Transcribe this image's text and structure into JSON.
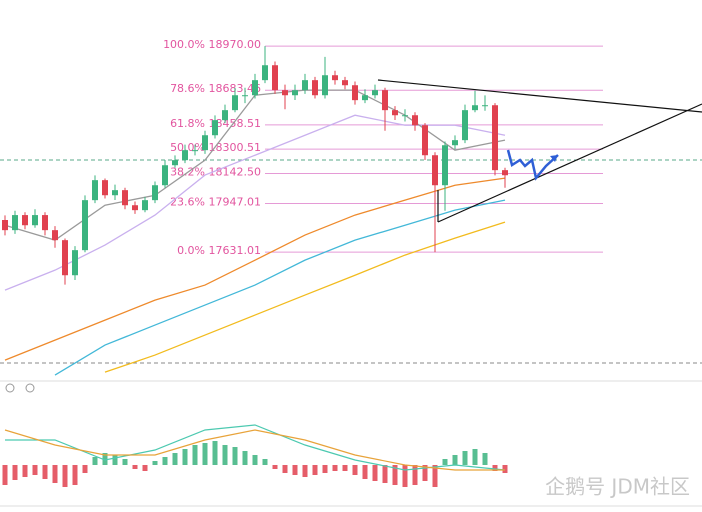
{
  "chart_data": {
    "type": "candlestick",
    "ylim": [
      16800,
      19270
    ],
    "up_color": "#3bb37f",
    "down_color": "#e0414f",
    "candles": [
      [
        17840,
        17870,
        17740,
        17774
      ],
      [
        17774,
        17900,
        17750,
        17872
      ],
      [
        17872,
        17890,
        17780,
        17806
      ],
      [
        17806,
        17910,
        17790,
        17872
      ],
      [
        17872,
        17890,
        17740,
        17774
      ],
      [
        17774,
        17800,
        17660,
        17709
      ],
      [
        17709,
        17720,
        17420,
        17481
      ],
      [
        17481,
        17670,
        17450,
        17644
      ],
      [
        17644,
        18000,
        17630,
        17969
      ],
      [
        17969,
        18130,
        17950,
        18099
      ],
      [
        18099,
        18110,
        17980,
        18001
      ],
      [
        18001,
        18070,
        17970,
        18034
      ],
      [
        18034,
        18050,
        17910,
        17936
      ],
      [
        17936,
        17960,
        17880,
        17904
      ],
      [
        17904,
        17990,
        17890,
        17969
      ],
      [
        17969,
        18090,
        17950,
        18066
      ],
      [
        18066,
        18230,
        18050,
        18196
      ],
      [
        18196,
        18260,
        18180,
        18229
      ],
      [
        18229,
        18330,
        18210,
        18294
      ],
      [
        18294,
        18330,
        18260,
        18294
      ],
      [
        18294,
        18420,
        18270,
        18391
      ],
      [
        18391,
        18520,
        18370,
        18489
      ],
      [
        18489,
        18590,
        18470,
        18554
      ],
      [
        18554,
        18700,
        18540,
        18651
      ],
      [
        18651,
        18700,
        18600,
        18651
      ],
      [
        18651,
        18790,
        18630,
        18749
      ],
      [
        18749,
        18970,
        18730,
        18846
      ],
      [
        18846,
        18870,
        18660,
        18684
      ],
      [
        18684,
        18720,
        18560,
        18651
      ],
      [
        18651,
        18720,
        18620,
        18684
      ],
      [
        18684,
        18790,
        18660,
        18749
      ],
      [
        18749,
        18770,
        18630,
        18651
      ],
      [
        18651,
        18900,
        18630,
        18781
      ],
      [
        18781,
        18810,
        18720,
        18749
      ],
      [
        18749,
        18770,
        18690,
        18716
      ],
      [
        18716,
        18740,
        18590,
        18619
      ],
      [
        18619,
        18690,
        18600,
        18651
      ],
      [
        18651,
        18720,
        18630,
        18684
      ],
      [
        18684,
        18700,
        18420,
        18554
      ],
      [
        18554,
        18580,
        18490,
        18521
      ],
      [
        18521,
        18560,
        18480,
        18521
      ],
      [
        18521,
        18540,
        18420,
        18456
      ],
      [
        18456,
        18470,
        18230,
        18261
      ],
      [
        18261,
        18280,
        17631,
        18066
      ],
      [
        18066,
        18350,
        17900,
        18326
      ],
      [
        18326,
        18390,
        18300,
        18359
      ],
      [
        18359,
        18590,
        18340,
        18554
      ],
      [
        18554,
        18680,
        18540,
        18586
      ],
      [
        18586,
        18650,
        18550,
        18586
      ],
      [
        18586,
        18600,
        18130,
        18164
      ],
      [
        18164,
        18180,
        18050,
        18131
      ]
    ],
    "moving_averages": [
      {
        "color": "#c9b0ee",
        "values": [
          17384,
          17514,
          17677,
          17872,
          18132,
          18261,
          18391,
          18521,
          18456,
          18456,
          18391
        ]
      },
      {
        "color": "#9a9a9a",
        "values": [
          17806,
          17709,
          17936,
          18001,
          18229,
          18651,
          18684,
          18684,
          18521,
          18294,
          18359
        ]
      },
      {
        "color": "#ee8a2c",
        "values": [
          16929,
          17059,
          17189,
          17319,
          17417,
          17579,
          17742,
          17872,
          17969,
          18066,
          18112
        ]
      },
      {
        "color": "#43b8d8",
        "values": [
          null,
          16832,
          17027,
          17157,
          17287,
          17417,
          17579,
          17709,
          17806,
          17904,
          17969
        ]
      },
      {
        "color": "#f2bb1e",
        "values": [
          null,
          null,
          16851,
          16962,
          17092,
          17222,
          17352,
          17481,
          17612,
          17722,
          17826
        ]
      }
    ],
    "fibonacci": {
      "line_color": "#e59ad6",
      "label_color": "#e2559f",
      "levels": [
        {
          "value": 18970,
          "label": "100.0% 18970.00"
        },
        {
          "value": 18683.46,
          "label": "78.6% 18683.46"
        },
        {
          "value": 18458.51,
          "label": "61.8% 18458.51"
        },
        {
          "value": 18300.51,
          "label": "50.0% 18300.51"
        },
        {
          "value": 18142.5,
          "label": "38.2% 18142.50"
        },
        {
          "value": 17947.01,
          "label": "23.6% 17947.01"
        },
        {
          "value": 17631.01,
          "label": "0.0% 17631.01"
        }
      ]
    },
    "macd": {
      "ylim": [
        -40,
        70
      ],
      "histogram": [
        -20,
        -15,
        -12,
        -10,
        -14,
        -18,
        -22,
        -20,
        -8,
        8,
        12,
        10,
        6,
        -4,
        -6,
        4,
        8,
        12,
        16,
        20,
        22,
        24,
        20,
        18,
        14,
        10,
        6,
        -4,
        -8,
        -10,
        -12,
        -10,
        -8,
        -6,
        -6,
        -10,
        -14,
        -16,
        -18,
        -20,
        -22,
        -20,
        -16,
        -22,
        6,
        10,
        14,
        16,
        12,
        -6,
        -8
      ],
      "lines": [
        {
          "color": "#4cc9b0",
          "values": [
            25,
            25,
            5,
            15,
            35,
            40,
            20,
            5,
            -5,
            0,
            -5
          ]
        },
        {
          "color": "#e8a33a",
          "values": [
            35,
            20,
            10,
            10,
            25,
            35,
            25,
            10,
            0,
            -5,
            -5
          ]
        }
      ]
    },
    "watermark": "企鹅号 JDM社区"
  }
}
